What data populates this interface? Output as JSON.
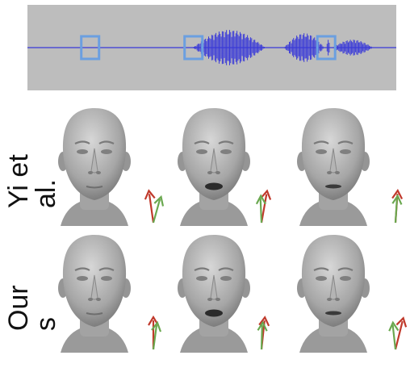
{
  "figure": {
    "waveform": {
      "markers": [
        {
          "name": "marker-1",
          "t": 0.17,
          "state": "silence"
        },
        {
          "name": "marker-2",
          "t": 0.45,
          "state": "speech"
        },
        {
          "name": "marker-3",
          "t": 0.81,
          "state": "speech"
        }
      ],
      "colors": {
        "background": "#bdbdbd",
        "wave": "#3a3ad8",
        "marker": "#6b9fe0"
      }
    },
    "rows": [
      {
        "label_lines": [
          "Yi et",
          "al."
        ],
        "heads": [
          {
            "mouth": "closed",
            "tilt": 8
          },
          {
            "mouth": "open",
            "tilt": -10
          },
          {
            "mouth": "slightly-open",
            "tilt": -4
          }
        ]
      },
      {
        "label_lines": [
          "Our",
          "s"
        ],
        "heads": [
          {
            "mouth": "closed",
            "tilt": 0
          },
          {
            "mouth": "open",
            "tilt": -6
          },
          {
            "mouth": "slightly-open",
            "tilt": -14
          }
        ]
      }
    ],
    "colors": {
      "head": "#a9a9a9",
      "arrow_red": "#c0392b",
      "arrow_green": "#6aa84f"
    }
  }
}
